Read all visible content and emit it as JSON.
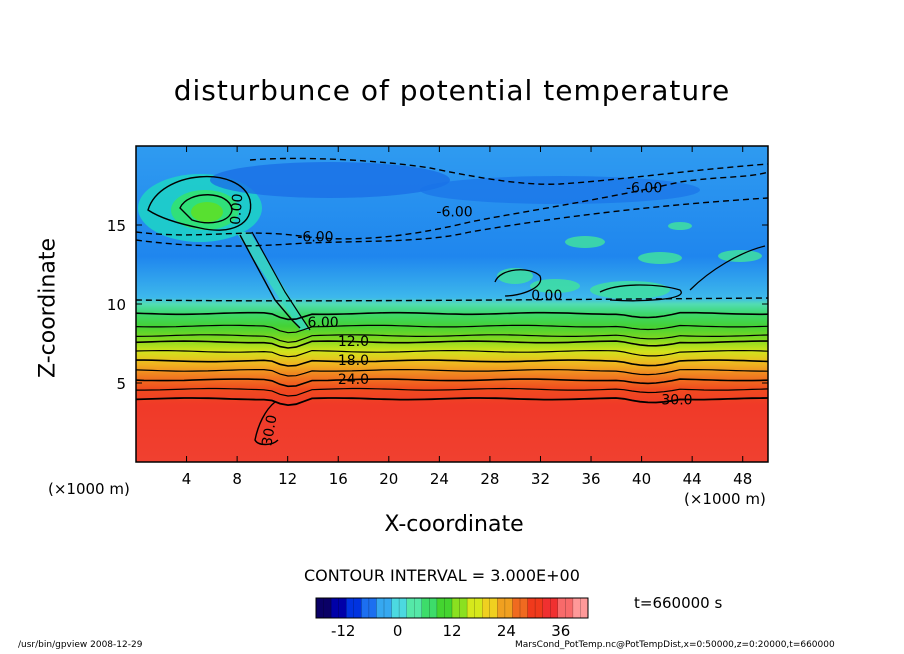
{
  "chart_data": {
    "type": "heatmap",
    "title": "disturbunce of potential temperature",
    "xlabel": "X-coordinate",
    "ylabel": "Z-coordinate",
    "x_unit_left": "(×1000 m)",
    "x_unit_right": "(×1000 m)",
    "xlim": [
      0,
      50
    ],
    "ylim": [
      0,
      20
    ],
    "x_ticks": [
      4,
      8,
      12,
      16,
      20,
      24,
      28,
      32,
      36,
      40,
      44,
      48
    ],
    "y_ticks": [
      5,
      10,
      15
    ],
    "contour_interval_text": "CONTOUR INTERVAL = 3.000E+00",
    "time_text": "t=660000 s",
    "contour_labels": [
      {
        "text": "-6.00",
        "x": 40.2,
        "z": 17.3
      },
      {
        "text": "-6.00",
        "x": 25.2,
        "z": 15.8
      },
      {
        "text": "-6.00",
        "x": 14.2,
        "z": 14.2
      },
      {
        "text": "0.00",
        "x": 32.5,
        "z": 10.5
      },
      {
        "text": "0.00",
        "x": 8.0,
        "z": 16.0
      },
      {
        "text": "6.00",
        "x": 14.8,
        "z": 8.8
      },
      {
        "text": "12.0",
        "x": 17.2,
        "z": 7.6
      },
      {
        "text": "18.0",
        "x": 17.2,
        "z": 6.4
      },
      {
        "text": "24.0",
        "x": 17.2,
        "z": 5.2
      },
      {
        "text": "30.0",
        "x": 42.8,
        "z": 3.9
      },
      {
        "text": "30.0",
        "x": 10.6,
        "z": 2.0
      }
    ],
    "colorbar": {
      "min": -18,
      "max": 42,
      "ticks": [
        -12,
        0,
        12,
        24,
        36
      ],
      "colors": [
        "#0a0066",
        "#0000a8",
        "#0033e0",
        "#1c6ff0",
        "#36a8f0",
        "#4cd9e0",
        "#55e8a8",
        "#3ddc6a",
        "#44d430",
        "#8ae020",
        "#d6e81c",
        "#f0d020",
        "#f0a020",
        "#f06a20",
        "#f03a1c",
        "#f03030",
        "#f86a6a",
        "#ff9999"
      ]
    }
  },
  "footer": {
    "left": "/usr/bin/gpview   2008-12-29",
    "right": "MarsCond_PotTemp.nc@PotTempDist,x=0:50000,z=0:20000,t=660000"
  }
}
